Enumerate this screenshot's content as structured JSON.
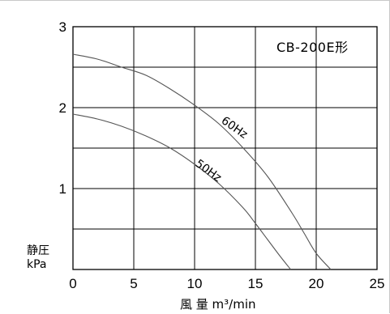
{
  "chart_data": {
    "type": "line",
    "model_label": "CB-200E形",
    "xlabel": "風 量  m³/min",
    "ylabel_line1": "静圧",
    "ylabel_line2": "kPa",
    "xlim": [
      0,
      25
    ],
    "ylim": [
      0,
      3
    ],
    "x_ticks": [
      "0",
      "5",
      "10",
      "15",
      "20",
      "25"
    ],
    "y_ticks": [
      "1",
      "2",
      "3"
    ],
    "grid": true,
    "series": [
      {
        "name": "60Hz",
        "x": [
          0,
          2,
          4,
          6,
          8,
          10,
          12,
          14,
          16,
          18,
          19,
          20,
          21.2
        ],
        "y": [
          2.66,
          2.6,
          2.5,
          2.4,
          2.23,
          2.03,
          1.8,
          1.5,
          1.15,
          0.7,
          0.45,
          0.2,
          0
        ]
      },
      {
        "name": "50Hz",
        "x": [
          0,
          2,
          4,
          6,
          8,
          10,
          12,
          14,
          15,
          16,
          17,
          17.9
        ],
        "y": [
          1.92,
          1.86,
          1.77,
          1.65,
          1.5,
          1.3,
          1.06,
          0.76,
          0.57,
          0.37,
          0.17,
          0
        ]
      }
    ]
  }
}
